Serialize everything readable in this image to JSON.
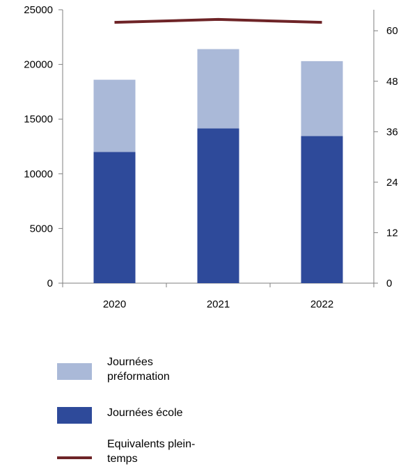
{
  "chart_data": {
    "type": "bar",
    "stacked": true,
    "categories": [
      "2020",
      "2021",
      "2022"
    ],
    "series": [
      {
        "name": "Journées école",
        "axis": "left",
        "values": [
          12000,
          14150,
          13450
        ],
        "color": "#2e4a9a"
      },
      {
        "name": "Journées préformation",
        "axis": "left",
        "values": [
          6600,
          7250,
          6850
        ],
        "color": "#aab9d8"
      },
      {
        "name": "Equivalents plein-temps",
        "axis": "right",
        "type": "line",
        "values": [
          62,
          62.7,
          62
        ],
        "color": "#6e2427"
      }
    ],
    "y_left": {
      "range": [
        0,
        25000
      ],
      "ticks": [
        "0",
        "5000",
        "10000",
        "15000",
        "20000",
        "25000"
      ]
    },
    "y_right": {
      "range": [
        0,
        65
      ],
      "ticks": [
        "0",
        "12",
        "24",
        "36",
        "48",
        "60"
      ]
    },
    "grid": false,
    "legend_position": "bottom"
  },
  "legend": [
    {
      "label": "Journées préformation",
      "color": "#aab9d8",
      "kind": "box"
    },
    {
      "label": "Journées école",
      "color": "#2e4a9a",
      "kind": "box"
    },
    {
      "label": "Equivalents plein-temps",
      "color": "#6e2427",
      "kind": "line"
    }
  ]
}
